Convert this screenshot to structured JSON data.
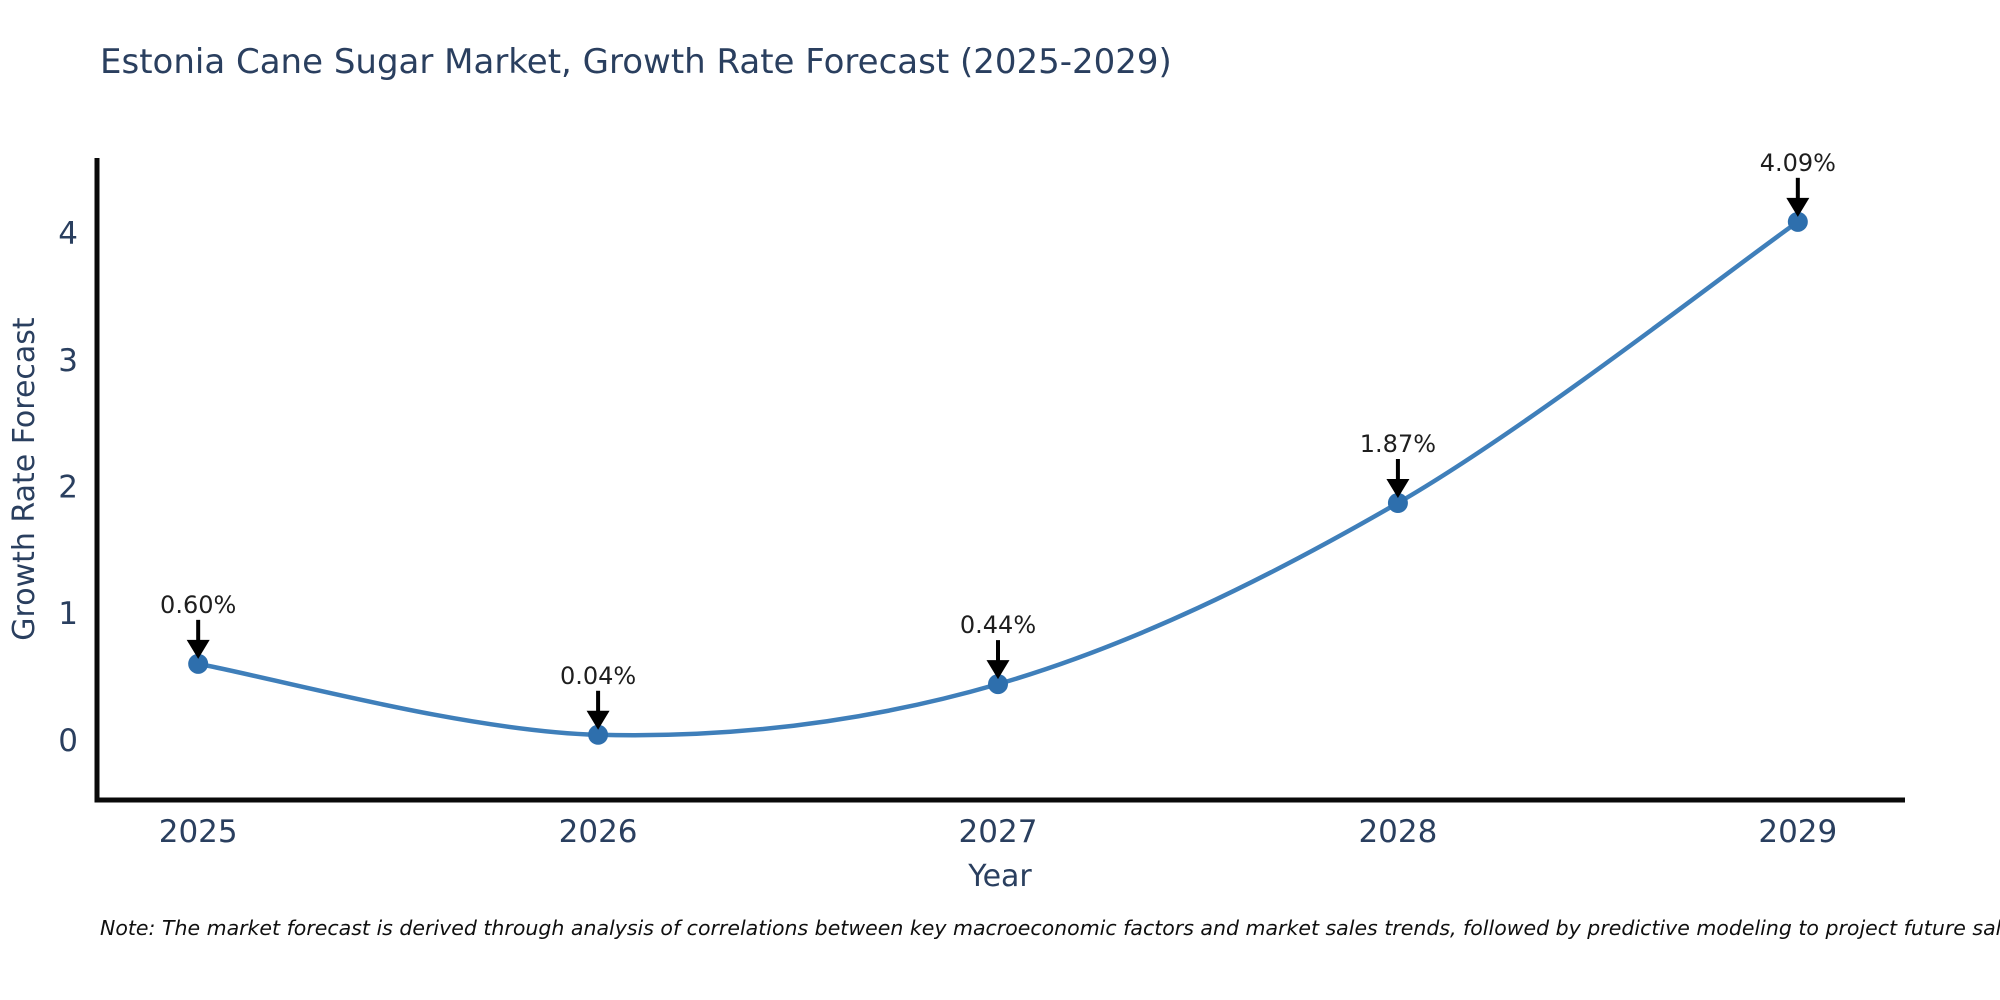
{
  "page": {
    "title": "Estonia Cane Sugar Market, Growth Rate Forecast (2025-2029)",
    "note": "Note: The market forecast is derived through analysis of correlations between key macroeconomic factors and market sales trends, followed by predictive modeling to project future sales."
  },
  "chart_data": {
    "type": "line",
    "title": "Estonia Cane Sugar Market, Growth Rate Forecast (2025-2029)",
    "x": [
      2025,
      2026,
      2027,
      2028,
      2029
    ],
    "values": [
      0.6,
      0.04,
      0.44,
      1.87,
      4.09
    ],
    "point_labels": [
      "0.60%",
      "0.04%",
      "0.44%",
      "1.87%",
      "4.09%"
    ],
    "xticks": [
      "2025",
      "2026",
      "2027",
      "2028",
      "2029"
    ],
    "yticks": [
      0,
      1,
      2,
      3,
      4
    ],
    "xlabel": "Year",
    "ylabel": "Growth Rate Forecast",
    "xlim": [
      2024.742,
      2029.268
    ],
    "ylim": [
      -0.475,
      4.594
    ],
    "grid": false,
    "legend": "none",
    "line_shape": "spline",
    "annotation_style": "down-arrow",
    "colors": {
      "line": "#3f7fba",
      "marker": "#2e6fad",
      "spine": "#0a0a0a",
      "axis_text": "#2a3f5f",
      "annotation_text": "#1e1e1e",
      "arrow": "#000000",
      "title": "#2a3f5f",
      "background": "#ffffff"
    }
  }
}
